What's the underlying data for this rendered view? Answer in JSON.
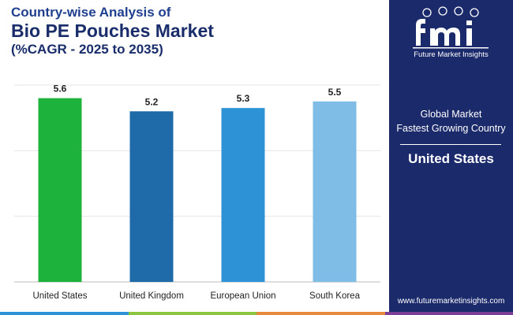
{
  "header": {
    "line1": "Country-wise Analysis of",
    "line2": "Bio PE Pouches Market",
    "line3": "(%CAGR - 2025 to 2035)"
  },
  "chart_data": {
    "type": "bar",
    "categories": [
      "United States",
      "United Kingdom",
      "European Union",
      "South Korea"
    ],
    "values": [
      5.6,
      5.2,
      5.3,
      5.5
    ],
    "value_labels": [
      "5.6",
      "5.2",
      "5.3",
      "5.5"
    ],
    "colors": [
      "#1cb23b",
      "#1f6aa8",
      "#2e93d6",
      "#7fbde6"
    ],
    "title": "Bio PE Pouches Market",
    "xlabel": "",
    "ylabel": "",
    "ylim": [
      0,
      6
    ],
    "grid": true
  },
  "sidebar": {
    "logo_text": "Future Market Insights",
    "label_line1": "Global Market",
    "label_line2": "Fastest Growing Country",
    "country": "United States",
    "url": "www.futuremarketinsights.com"
  },
  "colors": {
    "sidebar_bg": "#1b2a6b",
    "title": "#1a2d6b",
    "bottom_bar": [
      "#2e93d6",
      "#8cc63f",
      "#e8883a",
      "#7b3f98"
    ]
  }
}
